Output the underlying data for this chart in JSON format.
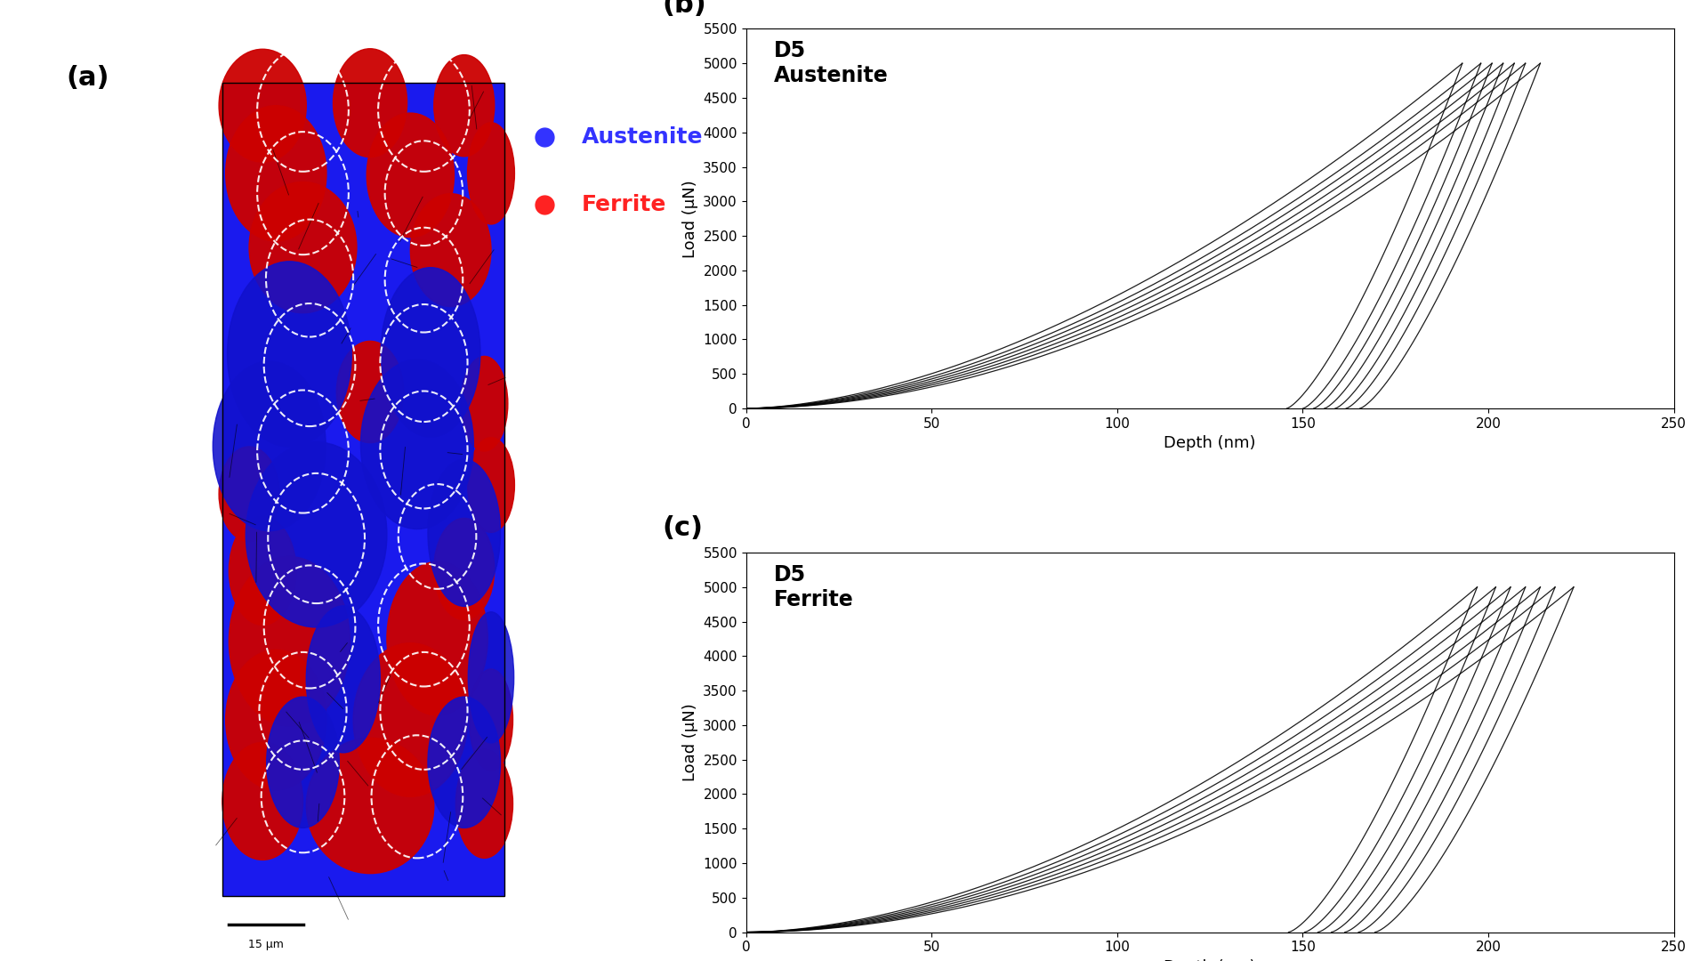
{
  "panel_a_label": "(a)",
  "panel_b_label": "(b)",
  "panel_c_label": "(c)",
  "legend_austenite": "Austenite",
  "legend_ferrite": "Ferrite",
  "austenite_color": "#3333FF",
  "ferrite_color": "#FF2222",
  "scalebar_text": "15 μm",
  "b_title": "D5\nAustenite",
  "c_title": "D5\nFerrite",
  "xlabel": "Depth (nm)",
  "ylabel": "Load (μN)",
  "xlim": [
    0,
    250
  ],
  "ylim": [
    0,
    5500
  ],
  "xticks": [
    0,
    50,
    100,
    150,
    200,
    250
  ],
  "yticks": [
    0,
    500,
    1000,
    1500,
    2000,
    2500,
    3000,
    3500,
    4000,
    4500,
    5000,
    5500
  ],
  "background_color": "#ffffff",
  "austenite_max_depths": [
    193,
    198,
    201,
    204,
    207,
    210,
    214
  ],
  "ferrite_max_depths": [
    197,
    202,
    206,
    210,
    214,
    218,
    223
  ],
  "max_load": 5000
}
